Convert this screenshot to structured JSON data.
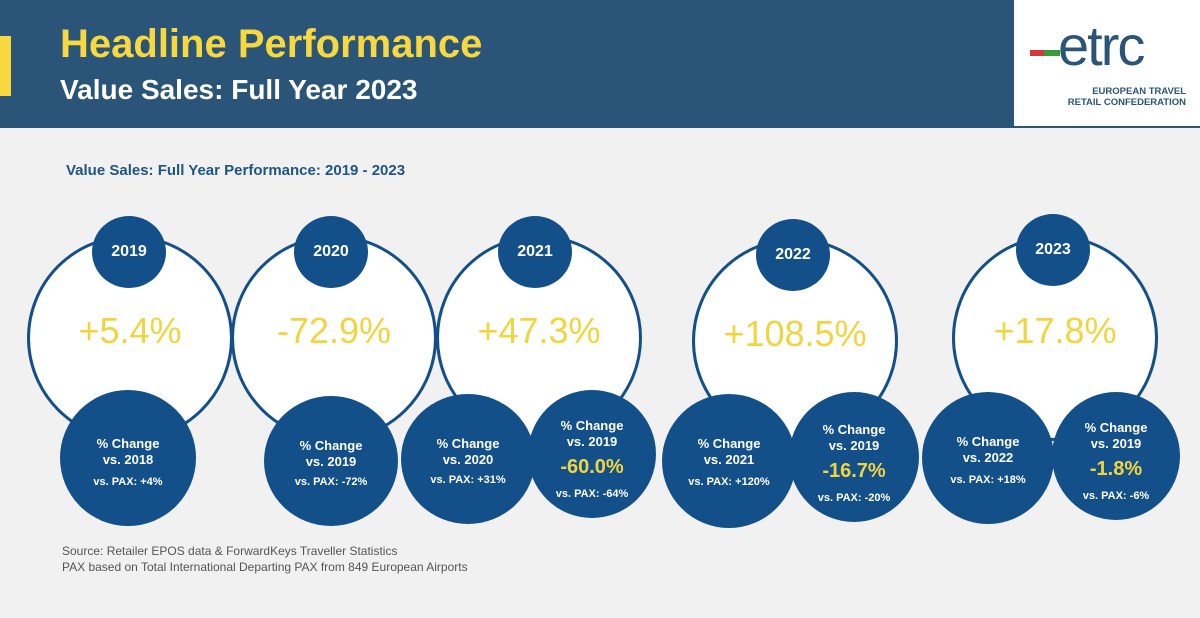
{
  "header": {
    "title": "Headline Performance",
    "subtitle": "Value Sales: Full Year 2023"
  },
  "logo": {
    "word": "etrc",
    "line1": "EUROPEAN TRAVEL",
    "line2": "RETAIL CONFEDERATION"
  },
  "section_title": "Value Sales: Full Year Performance: 2019 - 2023",
  "years": [
    {
      "year": "2019",
      "value": "+5.4%",
      "c1": {
        "label1": "% Change",
        "label2": "vs. 2018",
        "pax": "vs. PAX: +4%"
      }
    },
    {
      "year": "2020",
      "value": "-72.9%",
      "c1": {
        "label1": "% Change",
        "label2": "vs. 2019",
        "pax": "vs. PAX: -72%"
      }
    },
    {
      "year": "2021",
      "value": "+47.3%",
      "c1": {
        "label1": "% Change",
        "label2": "vs. 2020",
        "pax": "vs. PAX: +31%"
      },
      "c2": {
        "label1": "% Change",
        "label2": "vs. 2019",
        "pct": "-60.0%",
        "pax": "vs. PAX: -64%"
      }
    },
    {
      "year": "2022",
      "value": "+108.5%",
      "c1": {
        "label1": "% Change",
        "label2": "vs. 2021",
        "pax": "vs. PAX: +120%"
      },
      "c2": {
        "label1": "% Change",
        "label2": "vs. 2019",
        "pct": "-16.7%",
        "pax": "vs. PAX: -20%"
      }
    },
    {
      "year": "2023",
      "value": "+17.8%",
      "c1": {
        "label1": "% Change",
        "label2": "vs. 2022",
        "pax": "vs. PAX: +18%"
      },
      "c2": {
        "label1": "% Change",
        "label2": "vs. 2019",
        "pct": "-1.8%",
        "pax": "vs. PAX: -6%"
      }
    }
  ],
  "source": {
    "line1": "Source: Retailer EPOS data & ForwardKeys Traveller Statistics",
    "line2": "PAX based on Total International Departing PAX from 849 European Airports"
  },
  "colors": {
    "header": "#2a5478",
    "accent": "#f7d83f",
    "circle": "#135089"
  }
}
